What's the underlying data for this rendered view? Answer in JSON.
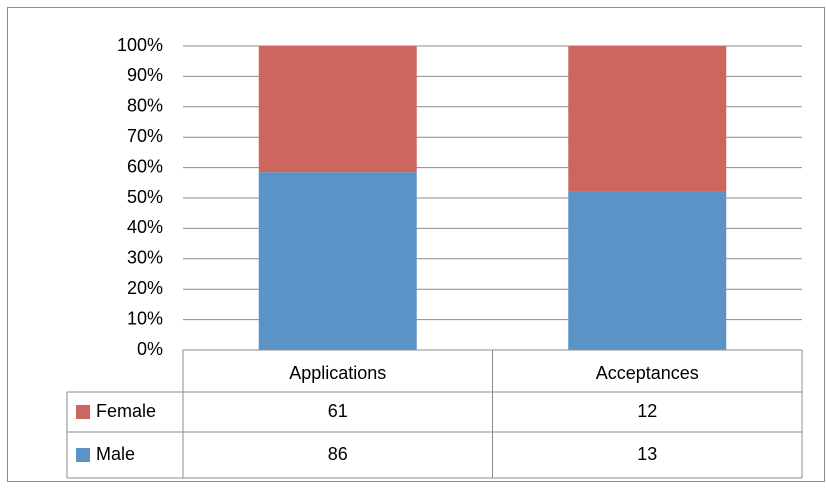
{
  "chart_data": {
    "type": "percent_stacked_bar",
    "categories": [
      "Applications",
      "Acceptances"
    ],
    "series": [
      {
        "name": "Female",
        "color": "#cd665f",
        "values": [
          61,
          12
        ]
      },
      {
        "name": "Male",
        "color": "#5b93c7",
        "values": [
          86,
          13
        ]
      }
    ],
    "ylim": [
      0,
      100
    ],
    "yticks": [
      {
        "value": 0,
        "label": "0%"
      },
      {
        "value": 10,
        "label": "10%"
      },
      {
        "value": 20,
        "label": "20%"
      },
      {
        "value": 30,
        "label": "30%"
      },
      {
        "value": 40,
        "label": "40%"
      },
      {
        "value": 50,
        "label": "50%"
      },
      {
        "value": 60,
        "label": "60%"
      },
      {
        "value": 70,
        "label": "70%"
      },
      {
        "value": 80,
        "label": "80%"
      },
      {
        "value": 90,
        "label": "90%"
      },
      {
        "value": 100,
        "label": "100%"
      }
    ],
    "grid": true,
    "data_table": true
  }
}
